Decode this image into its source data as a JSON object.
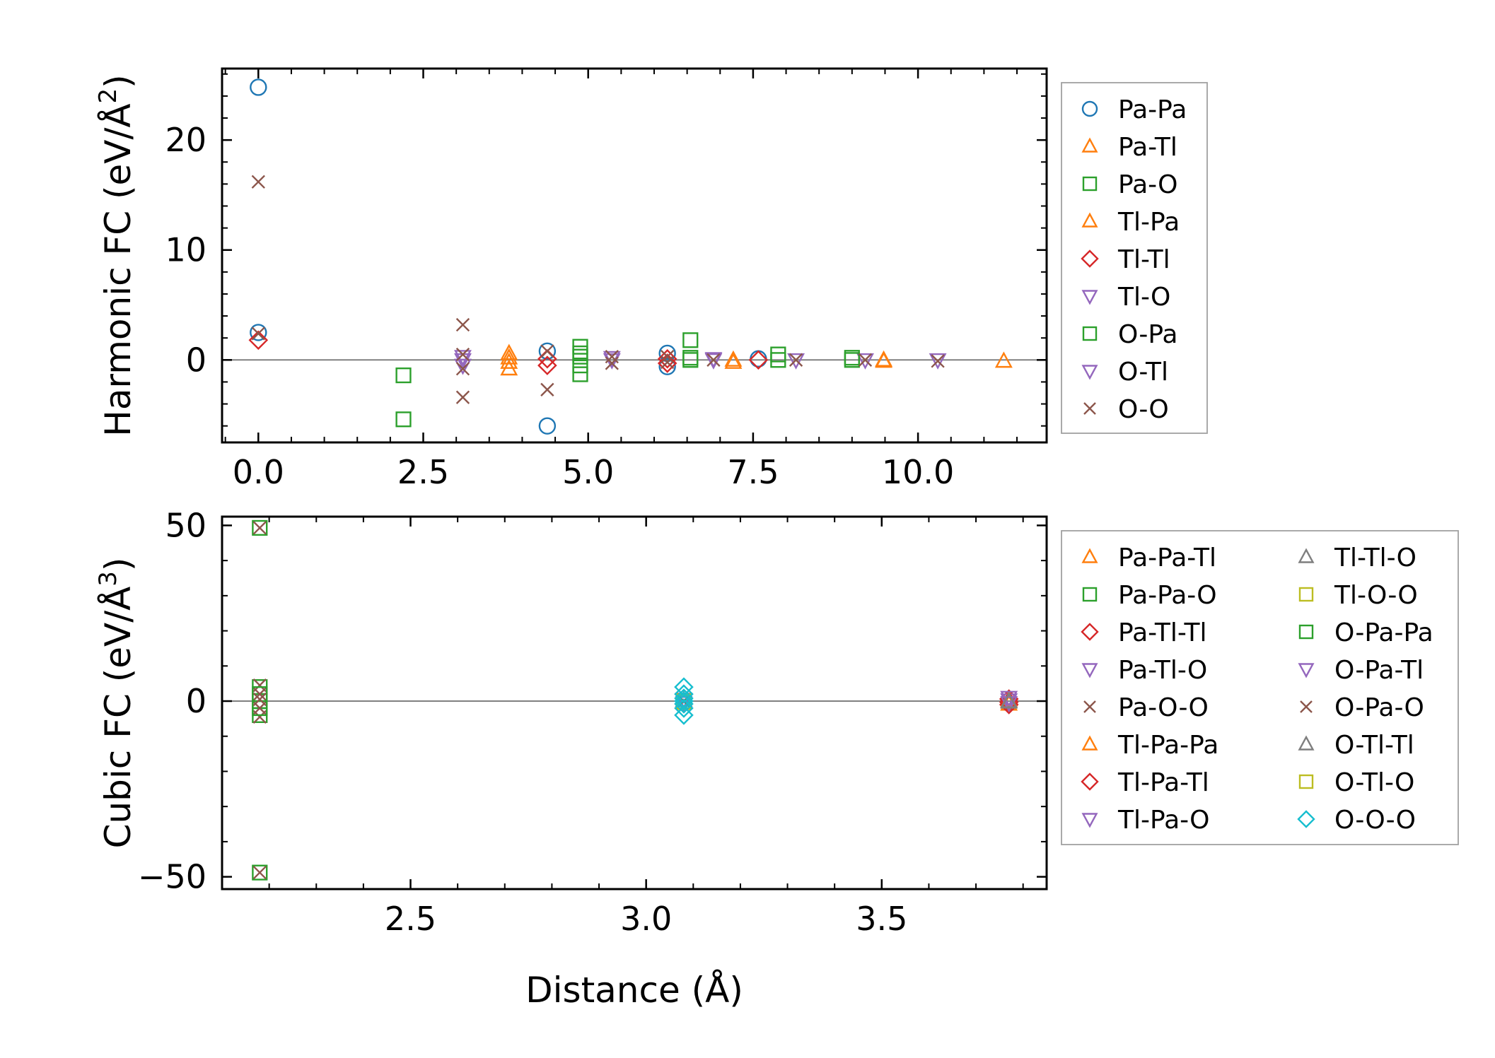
{
  "chart_data": [
    {
      "type": "scatter",
      "id": "harmonic",
      "ylabel": "Harmonic FC (eV/Å²)",
      "ylabel_text": "Harmonic FC (eV/Å",
      "ylabel_sup": "2",
      "ylabel_close": ")",
      "xlabel": "",
      "xlim": [
        -0.55,
        11.95
      ],
      "ylim": [
        -7.5,
        26.5
      ],
      "xticks": [
        0.0,
        2.5,
        5.0,
        7.5,
        10.0
      ],
      "xtick_labels": [
        "0.0",
        "2.5",
        "5.0",
        "7.5",
        "10.0"
      ],
      "yticks": [
        0,
        10,
        20
      ],
      "ytick_labels": [
        "0",
        "10",
        "20"
      ],
      "zero_line": 0,
      "series": [
        {
          "name": "Pa-Pa",
          "marker": "circle",
          "color": "#1f77b4",
          "points": [
            [
              0.0,
              24.8
            ],
            [
              0.0,
              2.5
            ],
            [
              4.38,
              0.8
            ],
            [
              4.38,
              -6.0
            ],
            [
              6.2,
              0.6
            ],
            [
              6.2,
              -0.6
            ],
            [
              7.58,
              0.1
            ]
          ]
        },
        {
          "name": "Pa-Tl",
          "marker": "triangle-up",
          "color": "#ff7f0e",
          "points": [
            [
              3.8,
              0.6
            ],
            [
              3.8,
              -0.2
            ],
            [
              3.8,
              -0.8
            ],
            [
              7.2,
              -0.2
            ],
            [
              9.48,
              -0.1
            ],
            [
              11.3,
              -0.1
            ]
          ]
        },
        {
          "name": "Pa-O",
          "marker": "square",
          "color": "#2ca02c",
          "points": [
            [
              2.2,
              -1.4
            ],
            [
              2.2,
              -5.4
            ],
            [
              4.88,
              1.2
            ],
            [
              4.88,
              0.3
            ],
            [
              4.88,
              -0.5
            ],
            [
              4.88,
              -1.3
            ],
            [
              6.55,
              1.8
            ],
            [
              6.55,
              0.0
            ],
            [
              7.88,
              0.5
            ],
            [
              7.88,
              0.0
            ],
            [
              9.0,
              0.2
            ]
          ]
        },
        {
          "name": "Tl-Pa",
          "marker": "triangle-up",
          "color": "#ff7f0e",
          "points": [
            [
              3.8,
              0.2
            ],
            [
              7.2,
              0.0
            ],
            [
              9.48,
              0.0
            ]
          ]
        },
        {
          "name": "Tl-Tl",
          "marker": "diamond",
          "color": "#d62728",
          "points": [
            [
              0.0,
              1.8
            ],
            [
              4.38,
              0.1
            ],
            [
              4.38,
              -0.5
            ],
            [
              6.2,
              0.1
            ],
            [
              6.2,
              -0.3
            ],
            [
              7.58,
              0.0
            ]
          ]
        },
        {
          "name": "Tl-O",
          "marker": "triangle-down",
          "color": "#9467bd",
          "points": [
            [
              3.1,
              0.3
            ],
            [
              3.1,
              -0.5
            ],
            [
              5.36,
              0.2
            ],
            [
              6.9,
              0.0
            ],
            [
              9.2,
              0.0
            ],
            [
              10.3,
              0.0
            ]
          ]
        },
        {
          "name": "O-Pa",
          "marker": "square",
          "color": "#2ca02c",
          "points": [
            [
              4.88,
              0.6
            ],
            [
              6.55,
              0.2
            ],
            [
              9.0,
              0.0
            ]
          ]
        },
        {
          "name": "O-Tl",
          "marker": "triangle-down",
          "color": "#9467bd",
          "points": [
            [
              3.1,
              0.0
            ],
            [
              5.36,
              0.0
            ],
            [
              6.9,
              0.1
            ],
            [
              8.15,
              0.0
            ]
          ]
        },
        {
          "name": "O-O",
          "marker": "x",
          "color": "#8c564b",
          "points": [
            [
              0.0,
              16.2
            ],
            [
              0.0,
              2.4
            ],
            [
              3.1,
              3.2
            ],
            [
              3.1,
              0.5
            ],
            [
              3.1,
              -0.8
            ],
            [
              3.1,
              -3.4
            ],
            [
              4.38,
              0.8
            ],
            [
              4.38,
              -2.7
            ],
            [
              5.36,
              0.3
            ],
            [
              5.36,
              -0.3
            ],
            [
              6.2,
              0.3
            ],
            [
              6.2,
              -0.2
            ],
            [
              6.9,
              0.0
            ],
            [
              8.15,
              0.0
            ],
            [
              9.2,
              0.0
            ],
            [
              10.3,
              -0.1
            ]
          ]
        }
      ]
    },
    {
      "type": "scatter",
      "id": "cubic",
      "ylabel": "Cubic FC (eV/Å³)",
      "ylabel_text": "Cubic FC (eV/Å",
      "ylabel_sup": "3",
      "ylabel_close": ")",
      "xlabel": "Distance (Å)",
      "xlim": [
        2.1,
        3.85
      ],
      "ylim": [
        -53.5,
        52.5
      ],
      "xticks": [
        2.5,
        3.0,
        3.5
      ],
      "xtick_labels": [
        "2.5",
        "3.0",
        "3.5"
      ],
      "yticks": [
        -50,
        0,
        50
      ],
      "ytick_labels": [
        "−50",
        "0",
        "50"
      ],
      "zero_line": 0,
      "series": [
        {
          "name": "Pa-Pa-Tl",
          "marker": "triangle-up",
          "color": "#ff7f0e",
          "points": [
            [
              3.77,
              0.5
            ],
            [
              3.77,
              -0.8
            ]
          ]
        },
        {
          "name": "Pa-Pa-O",
          "marker": "square",
          "color": "#2ca02c",
          "points": [
            [
              2.18,
              49.3
            ],
            [
              2.18,
              -48.8
            ],
            [
              2.18,
              4.0
            ],
            [
              2.18,
              0.0
            ],
            [
              2.18,
              -4.0
            ]
          ]
        },
        {
          "name": "Pa-Tl-Tl",
          "marker": "diamond",
          "color": "#d62728",
          "points": [
            [
              3.77,
              0.6
            ],
            [
              3.77,
              -1.0
            ]
          ]
        },
        {
          "name": "Pa-Tl-O",
          "marker": "triangle-down",
          "color": "#9467bd",
          "points": [
            [
              3.08,
              0.0
            ],
            [
              3.77,
              0.3
            ]
          ]
        },
        {
          "name": "Pa-O-O",
          "marker": "x",
          "color": "#8c564b",
          "points": [
            [
              2.18,
              49.3
            ],
            [
              2.18,
              -48.8
            ],
            [
              2.18,
              4.5
            ],
            [
              2.18,
              2.0
            ],
            [
              2.18,
              -2.0
            ],
            [
              2.18,
              -4.5
            ]
          ]
        },
        {
          "name": "Tl-Pa-Pa",
          "marker": "triangle-up",
          "color": "#ff7f0e",
          "points": [
            [
              3.77,
              0.2
            ]
          ]
        },
        {
          "name": "Tl-Pa-Tl",
          "marker": "diamond",
          "color": "#d62728",
          "points": [
            [
              3.77,
              -0.3
            ]
          ]
        },
        {
          "name": "Tl-Pa-O",
          "marker": "triangle-down",
          "color": "#9467bd",
          "points": [
            [
              3.08,
              0.5
            ],
            [
              3.77,
              1.0
            ]
          ]
        },
        {
          "name": "Tl-Tl-O",
          "marker": "triangle-up",
          "color": "#7f7f7f",
          "points": [
            [
              3.08,
              0.3
            ],
            [
              3.77,
              0.0
            ]
          ]
        },
        {
          "name": "Tl-O-O",
          "marker": "square",
          "color": "#bcbd22",
          "points": [
            [
              3.08,
              0.0
            ]
          ]
        },
        {
          "name": "O-Pa-Pa",
          "marker": "square",
          "color": "#2ca02c",
          "points": [
            [
              2.18,
              2.0
            ],
            [
              2.18,
              -2.0
            ]
          ]
        },
        {
          "name": "O-Pa-Tl",
          "marker": "triangle-down",
          "color": "#9467bd",
          "points": [
            [
              3.08,
              -0.5
            ],
            [
              3.77,
              -0.5
            ]
          ]
        },
        {
          "name": "O-Pa-O",
          "marker": "x",
          "color": "#8c564b",
          "points": [
            [
              2.18,
              0.5
            ],
            [
              3.08,
              0.0
            ]
          ]
        },
        {
          "name": "O-Tl-Tl",
          "marker": "triangle-up",
          "color": "#7f7f7f",
          "points": [
            [
              3.77,
              -0.2
            ]
          ]
        },
        {
          "name": "O-Tl-O",
          "marker": "square",
          "color": "#bcbd22",
          "points": [
            [
              3.08,
              -0.3
            ]
          ]
        },
        {
          "name": "O-O-O",
          "marker": "diamond",
          "color": "#17becf",
          "points": [
            [
              3.08,
              4.0
            ],
            [
              3.08,
              2.0
            ],
            [
              3.08,
              0.8
            ],
            [
              3.08,
              0.0
            ],
            [
              3.08,
              -0.8
            ],
            [
              3.08,
              -2.0
            ],
            [
              3.08,
              -4.0
            ]
          ]
        }
      ]
    }
  ]
}
